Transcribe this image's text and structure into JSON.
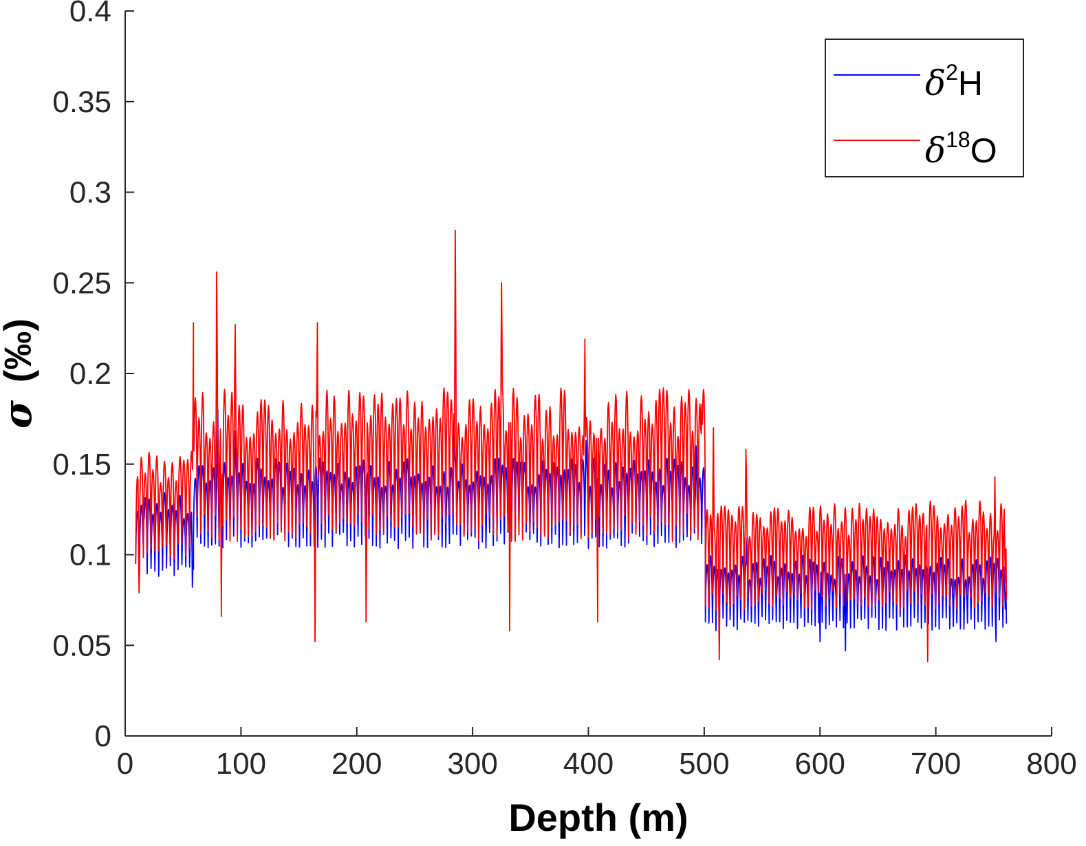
{
  "chart_data": {
    "type": "line",
    "title": "",
    "xlabel": "Depth (m)",
    "ylabel_symbol": "σ",
    "ylabel_unit": "(‰)",
    "xlim": [
      0,
      800
    ],
    "ylim": [
      0,
      0.4
    ],
    "xticks": [
      0,
      100,
      200,
      300,
      400,
      500,
      600,
      700,
      800
    ],
    "yticks": [
      0,
      0.05,
      0.1,
      0.15,
      0.2,
      0.25,
      0.3,
      0.35,
      0.4
    ],
    "xtick_labels": [
      "0",
      "100",
      "200",
      "300",
      "400",
      "500",
      "600",
      "700",
      "800"
    ],
    "ytick_labels": [
      "0",
      "0.05",
      "0.1",
      "0.15",
      "0.2",
      "0.25",
      "0.3",
      "0.35",
      "0.4"
    ],
    "grid": false,
    "legend_position": "top-right",
    "series": [
      {
        "name_prefix": "δ",
        "name_sup": "2",
        "name_suffix": "H",
        "color": "#0000ff",
        "segments": [
          {
            "x_start": 9,
            "x_end": 59,
            "peak": 0.128,
            "trough": 0.092,
            "cycles": 15
          },
          {
            "x_start": 59,
            "x_end": 501,
            "peak": 0.145,
            "trough": 0.108,
            "cycles": 140
          },
          {
            "x_start": 501,
            "x_end": 761,
            "peak": 0.093,
            "trough": 0.062,
            "cycles": 85
          }
        ],
        "points": [
          {
            "x": 16,
            "y": 0.118
          },
          {
            "x": 58,
            "y": 0.082
          },
          {
            "x": 80,
            "y": 0.18
          },
          {
            "x": 95,
            "y": 0.168
          },
          {
            "x": 284,
            "y": 0.178
          },
          {
            "x": 398,
            "y": 0.163
          },
          {
            "x": 493,
            "y": 0.16
          },
          {
            "x": 537,
            "y": 0.11
          },
          {
            "x": 600,
            "y": 0.052
          },
          {
            "x": 622,
            "y": 0.047
          },
          {
            "x": 752,
            "y": 0.052
          },
          {
            "x": 760,
            "y": 0.07
          }
        ]
      },
      {
        "name_prefix": "δ",
        "name_sup": "18",
        "name_suffix": "O",
        "color": "#ff0000",
        "segments": [
          {
            "x_start": 9,
            "x_end": 59,
            "peak": 0.148,
            "trough": 0.1,
            "cycles": 15
          },
          {
            "x_start": 59,
            "x_end": 501,
            "peak": 0.178,
            "trough": 0.115,
            "cycles": 140
          },
          {
            "x_start": 501,
            "x_end": 761,
            "peak": 0.12,
            "trough": 0.075,
            "cycles": 85
          }
        ],
        "points": [
          {
            "x": 12,
            "y": 0.079
          },
          {
            "x": 59,
            "y": 0.228
          },
          {
            "x": 79,
            "y": 0.256
          },
          {
            "x": 83,
            "y": 0.066
          },
          {
            "x": 95,
            "y": 0.227
          },
          {
            "x": 164,
            "y": 0.052
          },
          {
            "x": 166,
            "y": 0.228
          },
          {
            "x": 208,
            "y": 0.063
          },
          {
            "x": 285,
            "y": 0.279
          },
          {
            "x": 325,
            "y": 0.25
          },
          {
            "x": 332,
            "y": 0.058
          },
          {
            "x": 397,
            "y": 0.219
          },
          {
            "x": 408,
            "y": 0.063
          },
          {
            "x": 498,
            "y": 0.183
          },
          {
            "x": 508,
            "y": 0.17
          },
          {
            "x": 513,
            "y": 0.042
          },
          {
            "x": 536,
            "y": 0.158
          },
          {
            "x": 693,
            "y": 0.041
          },
          {
            "x": 751,
            "y": 0.143
          },
          {
            "x": 760,
            "y": 0.085
          }
        ]
      }
    ]
  }
}
